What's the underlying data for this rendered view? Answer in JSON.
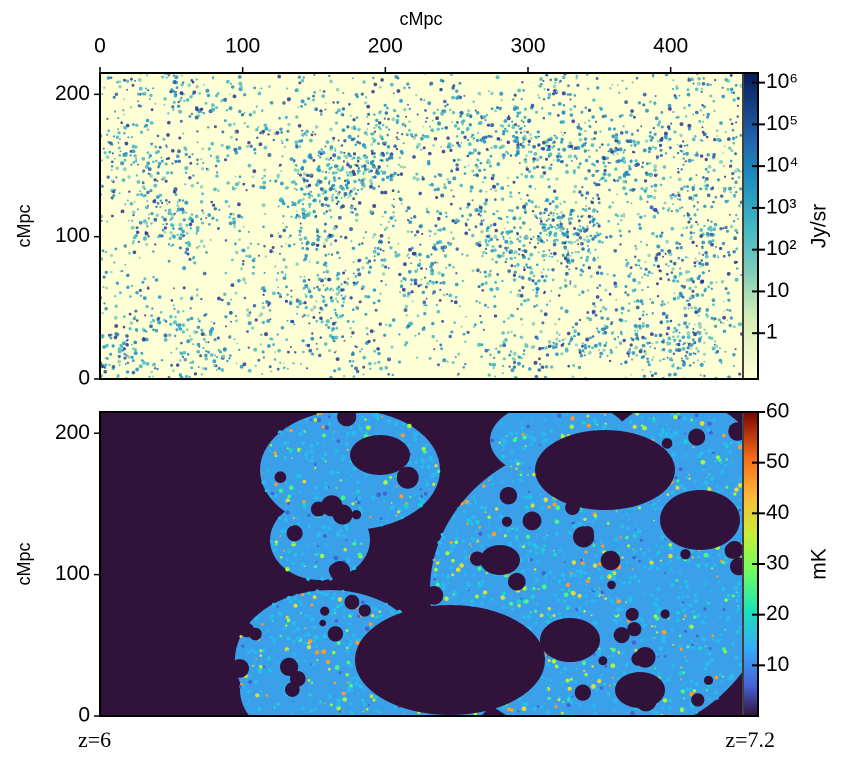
{
  "chart_data": [
    {
      "type": "image",
      "xlabel": "cMpc",
      "xlim": [
        0,
        450
      ],
      "xticks": [
        0,
        100,
        200,
        300,
        400
      ],
      "ylabel": "cMpc",
      "ylim": [
        0,
        215
      ],
      "yticks": [
        0,
        100,
        200
      ],
      "colorbar": {
        "label": "Jy/sr",
        "scale": "log",
        "lim": [
          0.08,
          1700000
        ],
        "colormap": "YlGnBu",
        "ticks": [
          1,
          10,
          {
            "value": 100,
            "label": "10²"
          },
          {
            "value": 1000,
            "label": "10³"
          },
          {
            "value": 10000,
            "label": "10⁴"
          },
          {
            "value": 100000,
            "label": "10⁵"
          },
          {
            "value": 1000000,
            "label": "10⁶"
          }
        ]
      }
    },
    {
      "type": "image",
      "ylabel": "cMpc",
      "xlim": [
        0,
        450
      ],
      "ylim": [
        0,
        215
      ],
      "yticks": [
        0,
        100,
        200
      ],
      "colorbar": {
        "label": "mK",
        "scale": "linear",
        "lim": [
          0,
          60
        ],
        "colormap": "turbo",
        "ticks": [
          10,
          20,
          30,
          40,
          50,
          60
        ]
      },
      "annotations": [
        "z=6",
        "z=7.2"
      ]
    }
  ]
}
